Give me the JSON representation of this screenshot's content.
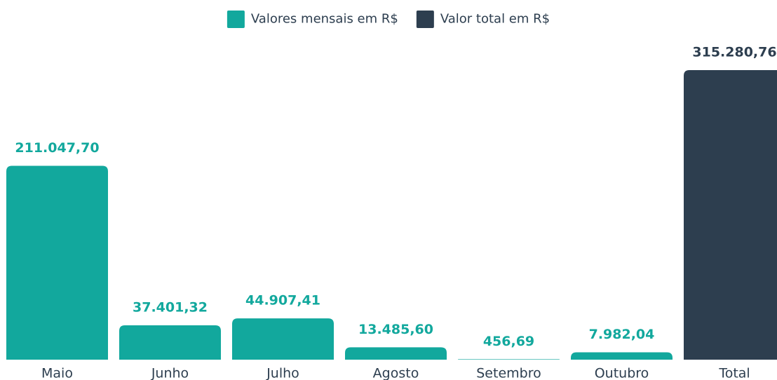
{
  "chart_data": {
    "type": "bar",
    "categories": [
      "Maio",
      "Junho",
      "Julho",
      "Agosto",
      "Setembro",
      "Outubro",
      "Total"
    ],
    "series": [
      {
        "name": "Valores mensais em R$",
        "color": "#12a89d",
        "values": [
          211047.7,
          37401.32,
          44907.41,
          13485.6,
          456.69,
          7982.04,
          null
        ],
        "value_labels": [
          "211.047,70",
          "37.401,32",
          "44.907,41",
          "13.485,60",
          "456,69",
          "7.982,04",
          null
        ]
      },
      {
        "name": "Valor total em R$",
        "color": "#2d3e4f",
        "values": [
          null,
          null,
          null,
          null,
          null,
          null,
          315280.76
        ],
        "value_labels": [
          null,
          null,
          null,
          null,
          null,
          null,
          "315.280,76"
        ]
      }
    ],
    "legend": "top"
  }
}
